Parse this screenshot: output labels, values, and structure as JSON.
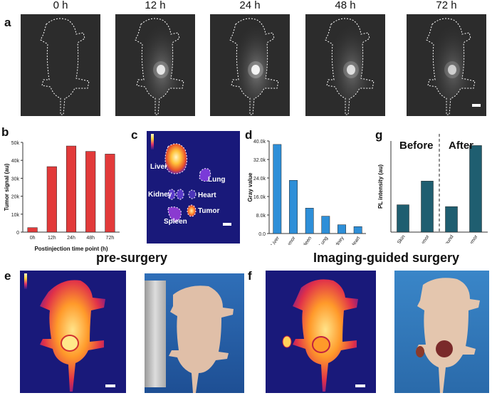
{
  "panel_a": {
    "letter": "a",
    "timepoints": [
      "0 h",
      "12 h",
      "24 h",
      "48 h",
      "72 h"
    ],
    "glow": [
      0,
      0.8,
      0.9,
      0.75,
      0.65
    ]
  },
  "panel_b": {
    "letter": "b"
  },
  "panel_c": {
    "letter": "c",
    "organs": [
      "Liver",
      "Lung",
      "Kidney",
      "Heart",
      "Tumor",
      "Spleen"
    ]
  },
  "panel_d": {
    "letter": "d"
  },
  "panel_g": {
    "letter": "g",
    "before": "Before",
    "after": "After"
  },
  "panel_e": {
    "letter": "e",
    "title": "pre-surgery"
  },
  "panel_f": {
    "letter": "f",
    "title": "Imaging-guided surgery"
  },
  "colors": {
    "red_bar": "#e23a3a",
    "blue_bar": "#2e8fd8",
    "teal_bar": "#1f5e70",
    "heat_bg": "#19197a"
  },
  "chart_data": [
    {
      "type": "bar",
      "categories": [
        "0h",
        "12h",
        "24h",
        "48h",
        "72h"
      ],
      "values": [
        2500,
        36500,
        48000,
        45000,
        43500
      ],
      "xlabel": "Postinjection time point (h)",
      "ylabel": "Tumor signal (au)",
      "ylim": [
        0,
        50000
      ],
      "yticks": [
        "0",
        "10k",
        "20k",
        "30k",
        "40k",
        "50k"
      ]
    },
    {
      "type": "bar",
      "categories": [
        "Liver",
        "Tumor",
        "Spleen",
        "Lung",
        "Kidney",
        "Heart"
      ],
      "values": [
        38500,
        23000,
        11000,
        7500,
        3800,
        3000
      ],
      "ylabel": "Gray value",
      "ylim": [
        0,
        40000
      ],
      "yticks": [
        "0.0",
        "8.0k",
        "16.0k",
        "24.0k",
        "32.0k",
        "40.0k"
      ]
    },
    {
      "type": "bar",
      "categories": [
        "Skin",
        "Tumor",
        "Wound",
        "Tumor"
      ],
      "values": [
        30,
        56,
        28,
        95
      ],
      "ylabel": "PL intensity (au)",
      "ylim": [
        0,
        100
      ]
    }
  ]
}
